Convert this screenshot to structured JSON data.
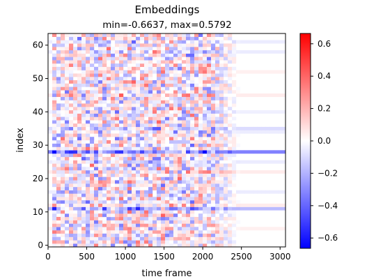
{
  "chart_data": {
    "type": "heatmap",
    "title": "Embeddings",
    "subtitle": "min=-0.6637, max=0.5792",
    "xlabel": "time frame",
    "ylabel": "index",
    "xlim": [
      0,
      3070
    ],
    "ylim": [
      -0.5,
      63.5
    ],
    "x_ticks": [
      0,
      500,
      1000,
      1500,
      2000,
      2500,
      3000
    ],
    "y_ticks": [
      0,
      10,
      20,
      30,
      40,
      50,
      60
    ],
    "n_rows": 64,
    "active_until": 2100,
    "fade_until": 2480,
    "value_min": -0.6637,
    "value_max": 0.5792,
    "row_biases": [
      {
        "row": 28,
        "value": -0.33
      },
      {
        "row": 11,
        "value": -0.18
      },
      {
        "row": 12,
        "value": 0.05
      },
      {
        "row": 35,
        "value": -0.09
      },
      {
        "row": 34,
        "value": -0.05
      },
      {
        "row": 22,
        "value": 0.05
      },
      {
        "row": 16,
        "value": -0.05
      },
      {
        "row": 45,
        "value": 0.05
      },
      {
        "row": 52,
        "value": 0.04
      },
      {
        "row": 58,
        "value": -0.05
      },
      {
        "row": 61,
        "value": -0.05
      },
      {
        "row": 5,
        "value": 0.04
      },
      {
        "row": 40,
        "value": -0.04
      },
      {
        "row": 25,
        "value": -0.05
      }
    ],
    "colorbar": {
      "colormap": "bwr",
      "range": [
        -0.6637,
        0.6637
      ],
      "ticks": [
        -0.6,
        -0.4,
        -0.2,
        0.0,
        0.2,
        0.4,
        0.6
      ],
      "tick_labels": [
        "−0.6",
        "−0.4",
        "−0.2",
        "0.0",
        "0.2",
        "0.4",
        "0.6"
      ]
    }
  }
}
